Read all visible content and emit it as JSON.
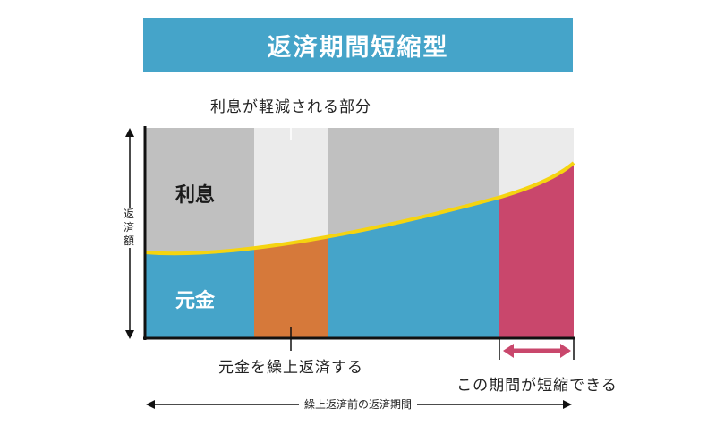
{
  "title": "返済期間短縮型",
  "callouts": {
    "interest_reduced": "利息が軽減される部分",
    "prepay_principal": "元金を繰上返済する",
    "period_shortened": "この期間が短縮できる"
  },
  "regions": {
    "interest": "利息",
    "principal": "元金"
  },
  "axes": {
    "y_label": "返済額",
    "x_label": "繰上返済前の返済期間"
  },
  "colors": {
    "banner": "#45a4c9",
    "interest_area": "#c0c0c0",
    "interest_saved": "#ebebeb",
    "principal_area": "#45a4c9",
    "prepaid_principal": "#d6793a",
    "shortened_period": "#c9476c",
    "boundary_curve": "#f5d410",
    "arrow_accent": "#c9476c"
  }
}
